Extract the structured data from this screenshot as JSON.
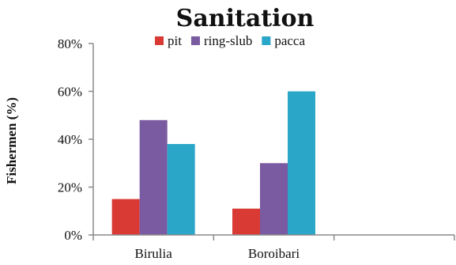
{
  "chart_data": {
    "type": "bar",
    "title": "Sanitation",
    "xlabel": "",
    "ylabel": "Fishermen (%)",
    "categories": [
      "Birulia",
      "Boroibari",
      ""
    ],
    "series": [
      {
        "name": "pit",
        "color": "#d93a34",
        "values": [
          15,
          11,
          null
        ]
      },
      {
        "name": "ring-slub",
        "color": "#7a5aa0",
        "values": [
          48,
          30,
          null
        ]
      },
      {
        "name": "pacca",
        "color": "#2aa6c8",
        "values": [
          38,
          60,
          null
        ]
      }
    ],
    "ylim": [
      0,
      80
    ],
    "yticks": [
      0,
      20,
      40,
      60,
      80
    ],
    "ytick_format": "percent",
    "grid": false,
    "legend_position": "top"
  }
}
